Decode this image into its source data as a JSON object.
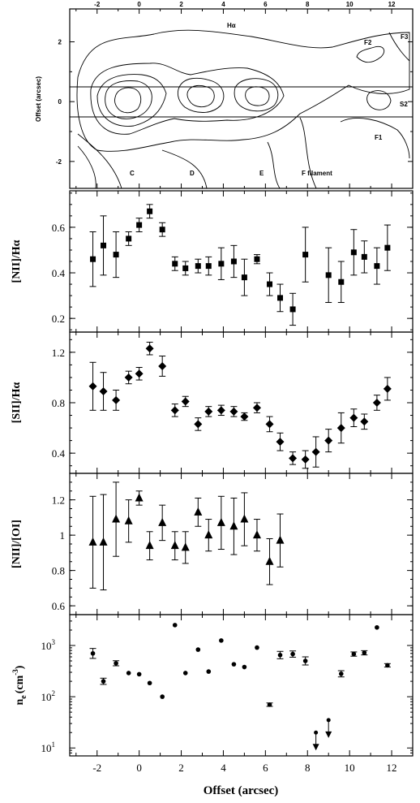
{
  "chart_data": [
    {
      "type": "contour",
      "title": "Hα",
      "ylabel": "Offset (arcsec)",
      "xlim": [
        -3.3,
        13.0
      ],
      "ylim": [
        -2.9,
        3.1
      ],
      "xticks": [
        "-2",
        "0",
        "2",
        "4",
        "6",
        "8",
        "10",
        "12"
      ],
      "yticks": [
        "2",
        "0",
        "-2"
      ],
      "slit_lines_y": [
        0.4,
        -0.6
      ],
      "annotations": [
        "C",
        "D",
        "E",
        "F filament",
        "F1",
        "F2",
        "F3",
        "S2"
      ]
    },
    {
      "type": "scatter",
      "marker": "square",
      "ylabel": "[NII]/Hα",
      "ylim": [
        0.14,
        0.76
      ],
      "yticks": [
        "0.2",
        "0.4",
        "0.6"
      ],
      "x": [
        -2.2,
        -1.7,
        -1.1,
        -0.5,
        0.0,
        0.5,
        1.1,
        1.7,
        2.2,
        2.8,
        3.3,
        3.9,
        4.5,
        5.0,
        5.6,
        6.2,
        6.7,
        7.3,
        7.9,
        9.0,
        9.6,
        10.2,
        10.7,
        11.3,
        11.8
      ],
      "y": [
        0.46,
        0.52,
        0.48,
        0.55,
        0.61,
        0.67,
        0.59,
        0.44,
        0.42,
        0.43,
        0.43,
        0.44,
        0.45,
        0.38,
        0.46,
        0.35,
        0.29,
        0.24,
        0.48,
        0.39,
        0.36,
        0.49,
        0.47,
        0.43,
        0.51
      ],
      "err": [
        0.12,
        0.13,
        0.1,
        0.03,
        0.03,
        0.03,
        0.03,
        0.03,
        0.03,
        0.03,
        0.04,
        0.07,
        0.07,
        0.08,
        0.02,
        0.05,
        0.06,
        0.07,
        0.12,
        0.12,
        0.09,
        0.1,
        0.07,
        0.08,
        0.1
      ]
    },
    {
      "type": "scatter",
      "marker": "diamond",
      "ylabel": "[SII]/Hα",
      "ylim": [
        0.24,
        1.36
      ],
      "yticks": [
        "0.4",
        "0.8",
        "1.2"
      ],
      "x": [
        -2.2,
        -1.7,
        -1.1,
        -0.5,
        0.0,
        0.5,
        1.1,
        1.7,
        2.2,
        2.8,
        3.3,
        3.9,
        4.5,
        5.0,
        5.6,
        6.2,
        6.7,
        7.3,
        7.9,
        8.4,
        9.0,
        9.6,
        10.2,
        10.7,
        11.3,
        11.8
      ],
      "y": [
        0.93,
        0.89,
        0.82,
        1.0,
        1.03,
        1.23,
        1.09,
        0.74,
        0.81,
        0.63,
        0.73,
        0.74,
        0.73,
        0.69,
        0.76,
        0.63,
        0.49,
        0.36,
        0.35,
        0.41,
        0.5,
        0.6,
        0.68,
        0.65,
        0.8,
        0.91
      ],
      "err": [
        0.19,
        0.15,
        0.08,
        0.05,
        0.05,
        0.05,
        0.08,
        0.05,
        0.04,
        0.05,
        0.04,
        0.04,
        0.04,
        0.03,
        0.04,
        0.06,
        0.07,
        0.05,
        0.07,
        0.12,
        0.09,
        0.12,
        0.07,
        0.06,
        0.06,
        0.09
      ]
    },
    {
      "type": "scatter",
      "marker": "triangle",
      "ylabel": "[NII]/[OI]",
      "ylim": [
        0.55,
        1.35
      ],
      "yticks": [
        "0.6",
        "0.8",
        "1",
        "1.2"
      ],
      "x": [
        -2.2,
        -1.7,
        -1.1,
        -0.5,
        0.0,
        0.5,
        1.1,
        1.7,
        2.2,
        2.8,
        3.3,
        3.9,
        4.5,
        5.0,
        5.6,
        6.2,
        6.7
      ],
      "y": [
        0.96,
        0.96,
        1.09,
        1.08,
        1.21,
        0.94,
        1.07,
        0.94,
        0.93,
        1.13,
        1.0,
        1.07,
        1.05,
        1.09,
        1.0,
        0.85,
        0.97
      ],
      "err": [
        0.26,
        0.27,
        0.21,
        0.12,
        0.04,
        0.08,
        0.1,
        0.08,
        0.09,
        0.08,
        0.09,
        0.15,
        0.16,
        0.15,
        0.09,
        0.13,
        0.15
      ]
    },
    {
      "type": "scatter",
      "marker": "circle",
      "ylabel": "n_e (cm^-3)",
      "yscale": "log",
      "ylim": [
        7,
        4000
      ],
      "yticks": [
        "10^1",
        "10^2",
        "10^3"
      ],
      "xlabel": "Offset (arcsec)",
      "x": [
        -2.2,
        -1.7,
        -1.1,
        -0.5,
        0.0,
        0.5,
        1.1,
        1.7,
        2.2,
        2.8,
        3.3,
        3.9,
        4.5,
        5.0,
        5.6,
        6.2,
        6.7,
        7.3,
        7.9,
        9.6,
        10.2,
        10.7,
        11.3,
        11.8
      ],
      "y": [
        700,
        200,
        450,
        290,
        275,
        185,
        100,
        2500,
        290,
        830,
        310,
        1250,
        430,
        380,
        910,
        70,
        650,
        680,
        500,
        280,
        680,
        720,
        2250,
        410
      ],
      "err_factor": [
        1.25,
        1.15,
        1.12,
        1.0,
        1.0,
        1.0,
        1.0,
        1.0,
        1.0,
        1.0,
        1.0,
        1.0,
        1.0,
        1.0,
        1.0,
        1.08,
        1.18,
        1.15,
        1.2,
        1.15,
        1.1,
        1.1,
        1.0,
        1.08
      ],
      "upper_limits": [
        {
          "x": 8.4,
          "y": 20
        },
        {
          "x": 9.0,
          "y": 35
        }
      ]
    }
  ],
  "panels": {
    "top": {
      "title": "Hα",
      "ylabel": "Offset (arcsec)",
      "ann_c": "C",
      "ann_d": "D",
      "ann_e": "E",
      "ann_f": "F filament",
      "ann_f1": "F1",
      "ann_f2": "F2",
      "ann_f3": "F3",
      "ann_s2": "S2"
    },
    "p1": {
      "ylabel": "[NII]/Hα"
    },
    "p2": {
      "ylabel": "[SII]/Hα"
    },
    "p3": {
      "ylabel": "[NII]/[OI]"
    },
    "p4": {
      "ylabel_main": "n",
      "ylabel_sub": "e",
      "ylabel_unit": "(cm",
      "ylabel_exp": "-3",
      "ylabel_close": ")"
    },
    "xlabel": "Offset (arcsec)"
  }
}
